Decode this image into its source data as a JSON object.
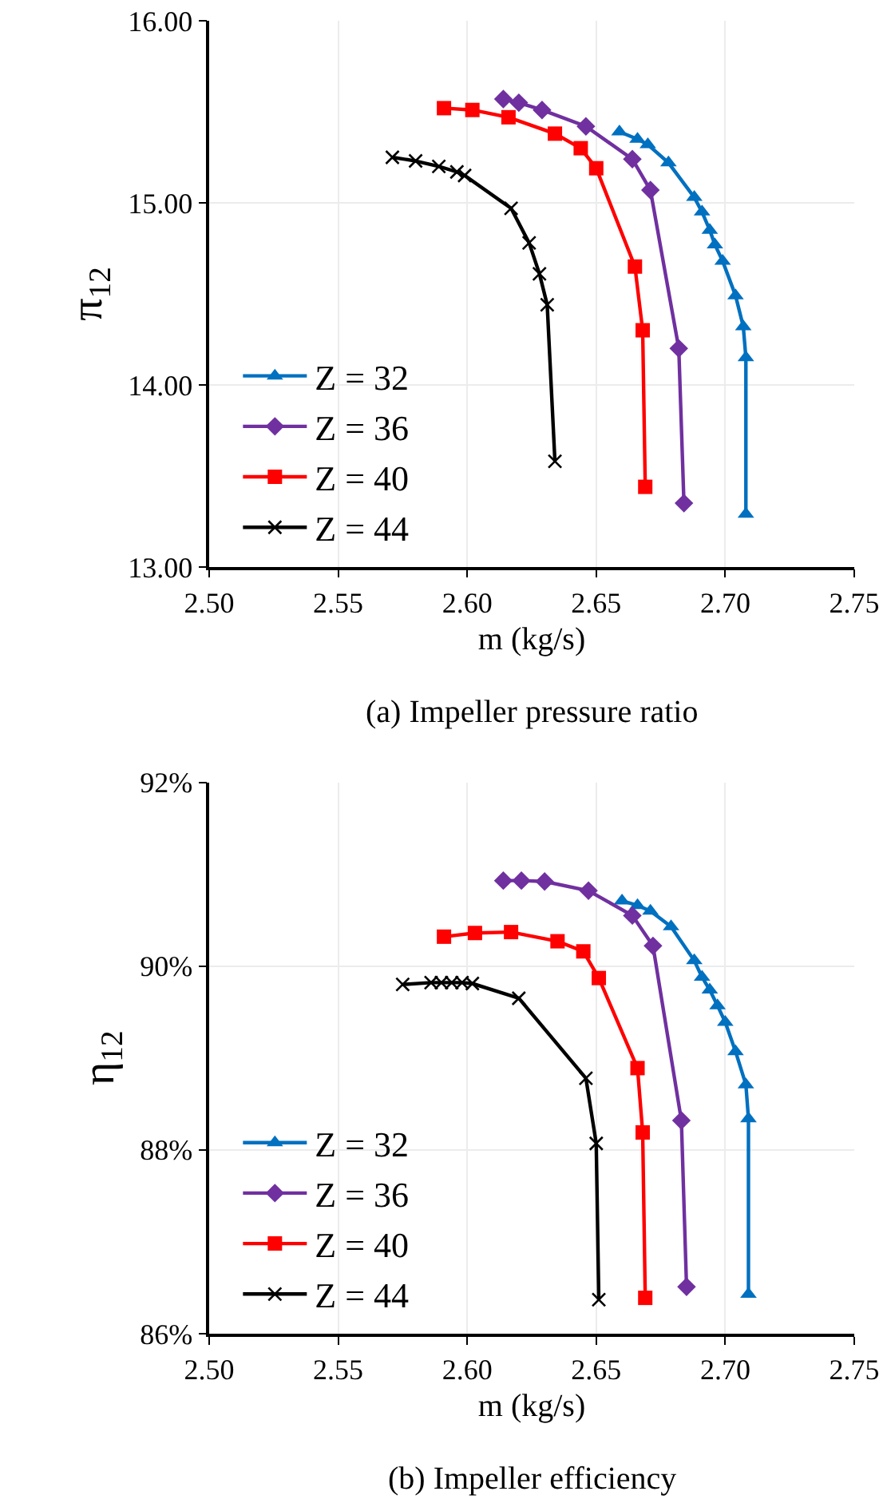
{
  "chart_data": [
    {
      "type": "line",
      "title": "(a) Impeller pressure ratio",
      "xlabel": "m (kg/s)",
      "ylabel": "π$_{12}$",
      "xlim": [
        2.5,
        2.75
      ],
      "xticks": [
        {
          "value": 2.5,
          "label": "2.50"
        },
        {
          "value": 2.55,
          "label": "2.55"
        },
        {
          "value": 2.6,
          "label": "2.60"
        },
        {
          "value": 2.65,
          "label": "2.65"
        },
        {
          "value": 2.7,
          "label": "2.70"
        },
        {
          "value": 2.75,
          "label": "2.75"
        }
      ],
      "ylim": [
        13,
        16
      ],
      "yticks": [
        {
          "value": 13,
          "label": "13.00"
        },
        {
          "value": 14,
          "label": "14.00"
        },
        {
          "value": 15,
          "label": "15.00"
        },
        {
          "value": 16,
          "label": "16.00"
        }
      ],
      "grid": true,
      "legend": "bottom left",
      "line_style": "solid",
      "series": [
        {
          "name": "Z = 32",
          "color": "#0070c0",
          "marker": "triangle",
          "x": [
            2.659,
            2.666,
            2.67,
            2.678,
            2.688,
            2.691,
            2.694,
            2.696,
            2.699,
            2.704,
            2.707,
            2.708,
            2.708
          ],
          "values": [
            15.39,
            15.35,
            15.32,
            15.22,
            15.03,
            14.95,
            14.85,
            14.77,
            14.68,
            14.49,
            14.32,
            14.15,
            13.29
          ]
        },
        {
          "name": "Z = 36",
          "color": "#7030a0",
          "marker": "diamond",
          "x": [
            2.614,
            2.62,
            2.629,
            2.646,
            2.664,
            2.671,
            2.682,
            2.684
          ],
          "values": [
            15.57,
            15.55,
            15.51,
            15.42,
            15.24,
            15.07,
            14.2,
            13.35
          ]
        },
        {
          "name": "Z = 40",
          "color": "#ff0000",
          "marker": "square",
          "x": [
            2.591,
            2.602,
            2.616,
            2.634,
            2.644,
            2.65,
            2.665,
            2.668,
            2.669
          ],
          "values": [
            15.52,
            15.51,
            15.47,
            15.38,
            15.3,
            15.19,
            14.65,
            14.3,
            13.44
          ]
        },
        {
          "name": "Z = 44",
          "color": "#000000",
          "marker": "cross",
          "x": [
            2.571,
            2.58,
            2.589,
            2.596,
            2.599,
            2.617,
            2.624,
            2.628,
            2.631,
            2.634
          ],
          "values": [
            15.25,
            15.23,
            15.2,
            15.17,
            15.15,
            14.97,
            14.78,
            14.61,
            14.44,
            13.58
          ]
        }
      ]
    },
    {
      "type": "line",
      "title": "(b) Impeller efficiency",
      "xlabel": "m (kg/s)",
      "ylabel": "η$_{12}$",
      "xlim": [
        2.5,
        2.75
      ],
      "xticks": [
        {
          "value": 2.5,
          "label": "2.50"
        },
        {
          "value": 2.55,
          "label": "2.55"
        },
        {
          "value": 2.6,
          "label": "2.60"
        },
        {
          "value": 2.65,
          "label": "2.65"
        },
        {
          "value": 2.7,
          "label": "2.70"
        },
        {
          "value": 2.75,
          "label": "2.75"
        }
      ],
      "ylim": [
        86,
        92
      ],
      "yticks": [
        {
          "value": 86,
          "label": "86%"
        },
        {
          "value": 88,
          "label": "88%"
        },
        {
          "value": 90,
          "label": "90%"
        },
        {
          "value": 92,
          "label": "92%"
        }
      ],
      "grid": true,
      "legend": "bottom left",
      "line_style": "solid",
      "series": [
        {
          "name": "Z = 32",
          "color": "#0070c0",
          "marker": "triangle",
          "x": [
            2.66,
            2.666,
            2.671,
            2.679,
            2.688,
            2.691,
            2.694,
            2.697,
            2.7,
            2.704,
            2.708,
            2.709,
            2.709
          ],
          "values": [
            90.71,
            90.66,
            90.6,
            90.43,
            90.06,
            89.88,
            89.74,
            89.57,
            89.39,
            89.07,
            88.71,
            88.34,
            86.43
          ]
        },
        {
          "name": "Z = 36",
          "color": "#7030a0",
          "marker": "diamond",
          "x": [
            2.614,
            2.621,
            2.63,
            2.647,
            2.664,
            2.672,
            2.683,
            2.685
          ],
          "values": [
            90.93,
            90.93,
            90.92,
            90.82,
            90.55,
            90.22,
            88.32,
            86.51
          ]
        },
        {
          "name": "Z = 40",
          "color": "#ff0000",
          "marker": "square",
          "x": [
            2.591,
            2.603,
            2.617,
            2.635,
            2.645,
            2.651,
            2.666,
            2.668,
            2.669
          ],
          "values": [
            90.32,
            90.36,
            90.37,
            90.27,
            90.16,
            89.87,
            88.89,
            88.19,
            86.39
          ]
        },
        {
          "name": "Z = 44",
          "color": "#000000",
          "marker": "cross",
          "x": [
            2.575,
            2.586,
            2.59,
            2.594,
            2.598,
            2.602,
            2.62,
            2.646,
            2.65,
            2.651
          ],
          "values": [
            89.8,
            89.82,
            89.82,
            89.82,
            89.82,
            89.81,
            89.65,
            88.78,
            88.07,
            86.37
          ]
        }
      ]
    }
  ]
}
